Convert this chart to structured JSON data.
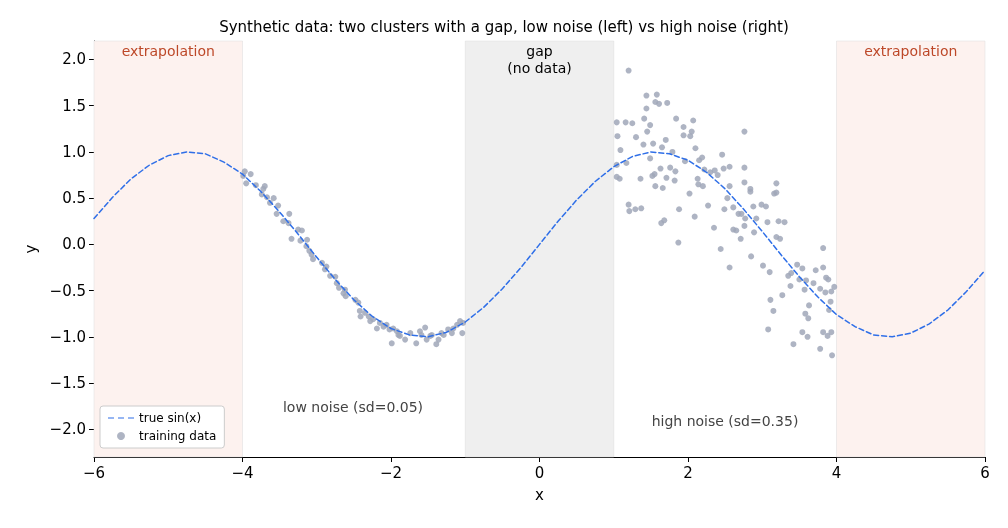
{
  "chart_data": {
    "type": "scatter",
    "title": "Synthetic data: two clusters with a gap, low noise (left) vs high noise (right)",
    "xlabel": "x",
    "ylabel": "y",
    "xlim": [
      -6,
      6
    ],
    "ylim": [
      -2.3,
      2.2
    ],
    "xticks": [
      {
        "value": -6,
        "label": "−6"
      },
      {
        "value": -4,
        "label": "−4"
      },
      {
        "value": -2,
        "label": "−2"
      },
      0,
      2,
      4,
      6
    ],
    "yticks": [
      {
        "value": -2,
        "label": "−2.0"
      },
      {
        "value": -1.5,
        "label": "−1.5"
      },
      {
        "value": -1,
        "label": "−1.0"
      },
      {
        "value": -0.5,
        "label": "−0.5"
      },
      {
        "value": 0,
        "label": "0.0"
      },
      {
        "value": 0.5,
        "label": "0.5"
      },
      {
        "value": 1,
        "label": "1.0"
      },
      {
        "value": 1.5,
        "label": "1.5"
      },
      {
        "value": 2,
        "label": "2.0"
      }
    ],
    "grid": false,
    "legend": "bottom left",
    "bands": [
      {
        "axis": "x",
        "from": -6,
        "to": -4,
        "label": "extrapolation",
        "color": "#fdf2ef"
      },
      {
        "axis": "x",
        "from": -1,
        "to": 1,
        "label": "gap\n(no data)",
        "color": "#efefef"
      },
      {
        "axis": "x",
        "from": 4,
        "to": 6,
        "label": "extrapolation",
        "color": "#fdf2ef"
      }
    ],
    "annotations": [
      "low noise (sd=0.05)",
      "high noise (sd=0.35)"
    ],
    "series": [
      {
        "name": "true sin(x)",
        "type": "line",
        "color": "#2f6fe8",
        "marker": "none",
        "line_style": "dashed",
        "x": [
          -6,
          -5.75,
          -5.5,
          -5.25,
          -5,
          -4.75,
          -4.5,
          -4.25,
          -4,
          -3.75,
          -3.5,
          -3.25,
          -3,
          -2.75,
          -2.5,
          -2.25,
          -2,
          -1.75,
          -1.5,
          -1.25,
          -1,
          -0.75,
          -0.5,
          -0.25,
          0,
          0.25,
          0.5,
          0.75,
          1,
          1.25,
          1.5,
          1.75,
          2,
          2.25,
          2.5,
          2.75,
          3,
          3.25,
          3.5,
          3.75,
          4,
          4.25,
          4.5,
          4.75,
          5,
          5.25,
          5.5,
          5.75,
          6
        ],
        "values": [
          0.28,
          0.51,
          0.71,
          0.86,
          0.96,
          1.0,
          0.98,
          0.89,
          0.76,
          0.57,
          0.35,
          0.11,
          -0.14,
          -0.38,
          -0.6,
          -0.78,
          -0.91,
          -0.98,
          -1.0,
          -0.95,
          -0.84,
          -0.68,
          -0.48,
          -0.25,
          0,
          0.25,
          0.48,
          0.68,
          0.84,
          0.95,
          1.0,
          0.98,
          0.91,
          0.78,
          0.6,
          0.38,
          0.14,
          -0.11,
          -0.35,
          -0.57,
          -0.76,
          -0.89,
          -0.98,
          -1.0,
          -0.96,
          -0.86,
          -0.71,
          -0.51,
          -0.28
        ]
      },
      {
        "name": "training data",
        "color": "#a0a7b8",
        "marker": "circle",
        "x": [
          -3.97,
          -3.99,
          -3.89,
          -3.95,
          -3.82,
          -3.72,
          -3.7,
          -3.74,
          -3.67,
          -3.63,
          -3.58,
          -3.52,
          -3.54,
          -3.37,
          -3.45,
          -3.38,
          -3.34,
          -3.25,
          -3.2,
          -3.22,
          -3.13,
          -3.14,
          -3.1,
          -3.07,
          -3.05,
          -2.93,
          -2.89,
          -2.87,
          -2.82,
          -2.75,
          -2.73,
          -2.7,
          -2.64,
          -2.61,
          -2.62,
          -2.48,
          -2.44,
          -2.42,
          -2.41,
          -2.35,
          -2.3,
          -2.28,
          -2.24,
          -2.19,
          -2.15,
          -2.1,
          -2.06,
          -2.02,
          -1.99,
          -1.97,
          -1.92,
          -1.9,
          -1.88,
          -1.81,
          -1.74,
          -1.66,
          -1.61,
          -1.59,
          -1.54,
          -1.52,
          -1.47,
          -1.45,
          -1.39,
          -1.36,
          -1.32,
          -1.29,
          -1.23,
          -1.18,
          -1.16,
          -1.11,
          -1.07,
          -1.04,
          -1.03,
          1.2,
          1.04,
          1.05,
          1.16,
          1.25,
          1.09,
          1.04,
          1.17,
          1.04,
          1.08,
          1.2,
          1.21,
          1.29,
          1.37,
          1.3,
          1.36,
          1.4,
          1.41,
          1.44,
          1.44,
          1.49,
          1.45,
          1.49,
          1.52,
          1.55,
          1.56,
          1.53,
          1.56,
          1.58,
          1.61,
          1.63,
          1.64,
          1.68,
          1.65,
          1.66,
          1.7,
          1.71,
          1.72,
          1.76,
          1.79,
          1.82,
          1.83,
          1.84,
          1.87,
          1.88,
          1.94,
          1.94,
          1.96,
          2.02,
          2.03,
          2.05,
          2.07,
          2.09,
          2.1,
          2.13,
          2.14,
          2.15,
          2.19,
          2.2,
          2.22,
          2.27,
          2.3,
          2.35,
          2.36,
          2.4,
          2.44,
          2.46,
          2.48,
          2.49,
          2.53,
          2.56,
          2.56,
          2.56,
          2.61,
          2.61,
          2.65,
          2.68,
          2.71,
          2.72,
          2.76,
          2.76,
          2.76,
          2.76,
          2.77,
          2.84,
          2.84,
          2.85,
          2.88,
          2.89,
          2.92,
          2.99,
          3.01,
          3.05,
          3.07,
          3.08,
          3.1,
          3.11,
          3.15,
          3.16,
          3.19,
          3.19,
          3.19,
          3.22,
          3.24,
          3.27,
          3.3,
          3.35,
          3.38,
          3.39,
          3.42,
          3.47,
          3.5,
          3.54,
          3.54,
          3.57,
          3.58,
          3.59,
          3.61,
          3.62,
          3.63,
          3.69,
          3.72,
          3.78,
          3.78,
          3.82,
          3.82,
          3.82,
          3.85,
          3.86,
          3.88,
          3.89,
          3.9,
          3.92,
          3.93,
          3.93,
          3.94,
          3.97
        ],
        "values": [
          0.79,
          0.74,
          0.76,
          0.66,
          0.64,
          0.6,
          0.63,
          0.54,
          0.51,
          0.45,
          0.5,
          0.42,
          0.33,
          0.33,
          0.25,
          0.23,
          0.06,
          0.16,
          0.15,
          0.04,
          0.05,
          -0.02,
          -0.07,
          -0.11,
          -0.16,
          -0.2,
          -0.27,
          -0.24,
          -0.34,
          -0.35,
          -0.42,
          -0.47,
          -0.53,
          -0.56,
          -0.49,
          -0.6,
          -0.63,
          -0.72,
          -0.78,
          -0.74,
          -0.78,
          -0.83,
          -0.81,
          -0.91,
          -0.85,
          -0.89,
          -0.87,
          -0.92,
          -1.07,
          -0.91,
          -0.94,
          -0.98,
          -0.99,
          -1.03,
          -0.96,
          -1.07,
          -0.94,
          -0.98,
          -0.9,
          -1.03,
          -0.99,
          -0.98,
          -1.08,
          -1.03,
          -0.96,
          -0.98,
          -0.92,
          -0.96,
          -0.91,
          -0.87,
          -0.83,
          -0.96,
          -0.85,
          1.88,
          1.32,
          1.17,
          1.32,
          1.31,
          1.02,
          0.86,
          0.88,
          0.73,
          0.71,
          0.43,
          0.36,
          0.38,
          0.39,
          1.16,
          0.71,
          1.08,
          1.36,
          1.47,
          1.61,
          1.29,
          1.22,
          0.93,
          0.74,
          0.76,
          0.63,
          1.09,
          1.54,
          1.62,
          1.52,
          0.82,
          0.23,
          0.26,
          1.05,
          0.61,
          1.13,
          0.72,
          1.53,
          0.83,
          1.0,
          0.69,
          0.79,
          1.36,
          0.02,
          0.38,
          1.27,
          1.18,
          0.9,
          0.55,
          1.17,
          1.22,
          1.34,
          0.3,
          1.04,
          0.71,
          0.65,
          0.91,
          0.94,
          0.63,
          0.81,
          0.42,
          0.78,
          0.18,
          0.8,
          0.75,
          -0.05,
          0.97,
          0.82,
          0.38,
          0.5,
          0.84,
          -0.25,
          0.63,
          0.16,
          0.4,
          0.15,
          0.33,
          0.06,
          0.33,
          1.22,
          0.83,
          0.67,
          0.2,
          0.28,
          0.6,
          0.57,
          -0.13,
          0.41,
          0.13,
          0.28,
          0.43,
          -0.23,
          0.41,
          0.24,
          -0.92,
          -0.3,
          -0.6,
          -0.72,
          0.55,
          0.56,
          0.66,
          0.08,
          0.25,
          0.06,
          -0.55,
          0.24,
          -0.34,
          -0.45,
          -0.31,
          -1.08,
          -0.22,
          -0.38,
          -0.26,
          -0.95,
          -0.49,
          -0.75,
          -0.39,
          -1.0,
          -0.8,
          -0.66,
          -0.42,
          -0.28,
          -1.13,
          -0.48,
          -0.04,
          -0.25,
          -0.95,
          -0.52,
          -0.36,
          -0.99,
          -0.38,
          -0.71,
          -0.62,
          -0.51,
          -0.95,
          -1.2,
          -0.46
        ]
      }
    ]
  }
}
